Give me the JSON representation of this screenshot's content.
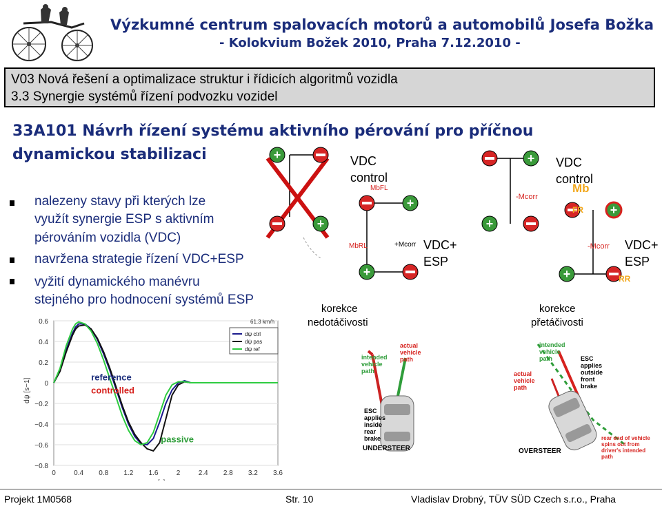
{
  "header": {
    "line1": "Výzkumné centrum spalovacích motorů a automobilů Josefa Božka",
    "line2": "- Kolokvium Božek 2010, Praha 7.12.2010 -"
  },
  "section": {
    "line1": "V03 Nová řešení a optimalizace struktur i řídicích algoritmů vozidla",
    "line2": "3.3 Synergie systémů řízení podvozku vozidel"
  },
  "title": {
    "line1": "33A101 Návrh řízení systému aktivního pérování pro příčnou",
    "line2": "dynamickou stabilizaci"
  },
  "bullets": [
    [
      "nalezeny stavy při kterých lze",
      "využít synergie ESP s aktivním",
      "pérováním vozidla (VDC)"
    ],
    [
      "navržena strategie řízení VDC+ESP"
    ],
    [
      "vyžití dynamického manévru",
      "stejného pro hodnocení systémů ESP"
    ]
  ],
  "diagram_left": {
    "vdc": "VDC",
    "control": "control",
    "vdc_esp1": "VDC+",
    "vdc_esp2": "ESP",
    "correction1": "korekce",
    "correction2": "nedotáčivosti",
    "m_bfl": "MbFL",
    "m_brl": "MbRL",
    "m_corr": "+Mcorr"
  },
  "diagram_right": {
    "vdc": "VDC",
    "control": "control",
    "vdc_esp1": "VDC+",
    "vdc_esp2": "ESP",
    "correction1": "korekce",
    "correction2": "přetáčivosti",
    "m_corr1": "-Mcorr",
    "m_corr2": "-Mcorr",
    "m_b": "Mb",
    "fr": "FR",
    "rr": "RR"
  },
  "car_left": {
    "understeer": "UNDERSTEER",
    "intended": "intended vehicle path",
    "actual": "actual vehicle path",
    "esc_note": "ESC applies inside rear brake"
  },
  "car_right": {
    "oversteer": "OVERSTEER",
    "intended": "intended vehicle path",
    "actual": "actual vehicle path",
    "esc_note": "ESC applies outside front brake",
    "rear_note": "rear end of vehicle spins out from driver's intended path"
  },
  "chart_data": {
    "type": "line",
    "xlabel": "cas [s]",
    "ylabel": "dψ [s−1]",
    "xlim": [
      0,
      3.6
    ],
    "ylim": [
      -0.8,
      0.6
    ],
    "xticks": [
      "0",
      "0.4",
      "0.8",
      "1.2",
      "1.6",
      "2",
      "2.4",
      "2.8",
      "3.2",
      "3.6"
    ],
    "yticks": [
      "0.6",
      "0.4",
      "0.2",
      "0",
      "−0.2",
      "−0.4",
      "−0.6",
      "−0.8"
    ],
    "speed_label": "61.3 km/h",
    "legend": [
      "dψ ctrl",
      "dψ pas",
      "dψ ref"
    ],
    "annotations": {
      "reference": "reference",
      "controlled": "controlled",
      "passive": "passive"
    },
    "series": [
      {
        "name": "dψ ctrl",
        "color": "#1a1a8c",
        "x": [
          0,
          0.1,
          0.2,
          0.3,
          0.35,
          0.4,
          0.5,
          0.6,
          0.7,
          0.8,
          0.9,
          1.0,
          1.1,
          1.2,
          1.3,
          1.4,
          1.5,
          1.6,
          1.7,
          1.8,
          1.9,
          2.0,
          2.1,
          2.2,
          2.4,
          2.6,
          2.8,
          3.0,
          3.2,
          3.4,
          3.6
        ],
        "y": [
          0,
          0.12,
          0.32,
          0.48,
          0.54,
          0.57,
          0.57,
          0.52,
          0.42,
          0.28,
          0.12,
          -0.06,
          -0.24,
          -0.4,
          -0.52,
          -0.59,
          -0.6,
          -0.54,
          -0.38,
          -0.2,
          -0.07,
          0,
          0.02,
          0,
          0,
          0,
          0,
          0,
          0,
          0,
          0
        ]
      },
      {
        "name": "dψ pas",
        "color": "#111111",
        "x": [
          0,
          0.1,
          0.2,
          0.3,
          0.35,
          0.4,
          0.5,
          0.6,
          0.7,
          0.8,
          0.9,
          1.0,
          1.1,
          1.2,
          1.3,
          1.4,
          1.5,
          1.6,
          1.7,
          1.8,
          1.9,
          2.0,
          2.1,
          2.2,
          2.4,
          2.6,
          2.8,
          3.0,
          3.2,
          3.4,
          3.6
        ],
        "y": [
          0,
          0.11,
          0.3,
          0.46,
          0.52,
          0.55,
          0.56,
          0.52,
          0.43,
          0.3,
          0.14,
          -0.04,
          -0.22,
          -0.38,
          -0.5,
          -0.58,
          -0.64,
          -0.66,
          -0.58,
          -0.35,
          -0.12,
          -0.02,
          0.01,
          0,
          0,
          0,
          0,
          0,
          0,
          0,
          0
        ]
      },
      {
        "name": "dψ ref",
        "color": "#2ecc40",
        "x": [
          0,
          0.1,
          0.2,
          0.3,
          0.35,
          0.4,
          0.5,
          0.6,
          0.7,
          0.8,
          0.9,
          1.0,
          1.1,
          1.2,
          1.3,
          1.4,
          1.5,
          1.6,
          1.7,
          1.8,
          1.9,
          2.0,
          2.1,
          2.2,
          2.4,
          2.6,
          2.8,
          3.0,
          3.2,
          3.4,
          3.6
        ],
        "y": [
          0,
          0.14,
          0.36,
          0.52,
          0.57,
          0.59,
          0.57,
          0.5,
          0.38,
          0.22,
          0.04,
          -0.14,
          -0.32,
          -0.46,
          -0.56,
          -0.6,
          -0.58,
          -0.48,
          -0.3,
          -0.12,
          -0.02,
          0.01,
          0.01,
          0,
          0,
          0,
          0,
          0,
          0,
          0,
          0
        ]
      }
    ]
  }
}
